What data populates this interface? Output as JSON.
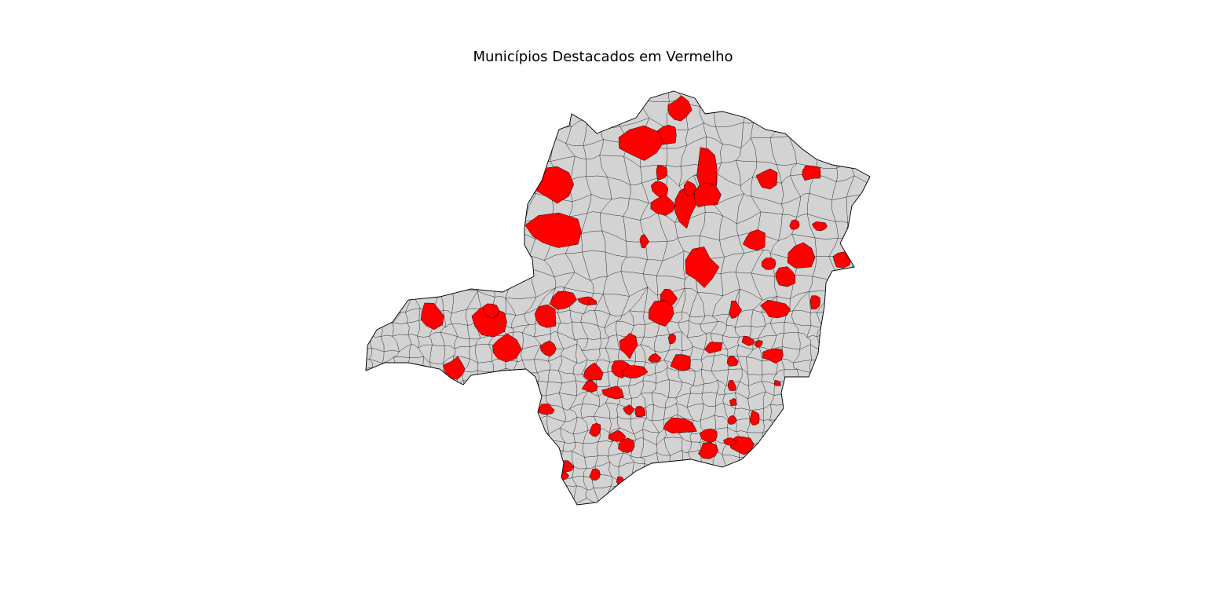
{
  "title": "Municípios Destacados em Vermelho",
  "colors": {
    "base": "#d3d3d3",
    "highlight": "#ff0000",
    "border": "#000000",
    "background": "#ffffff"
  },
  "map": {
    "region": "Minas Gerais",
    "highlighted_count": 72
  }
}
